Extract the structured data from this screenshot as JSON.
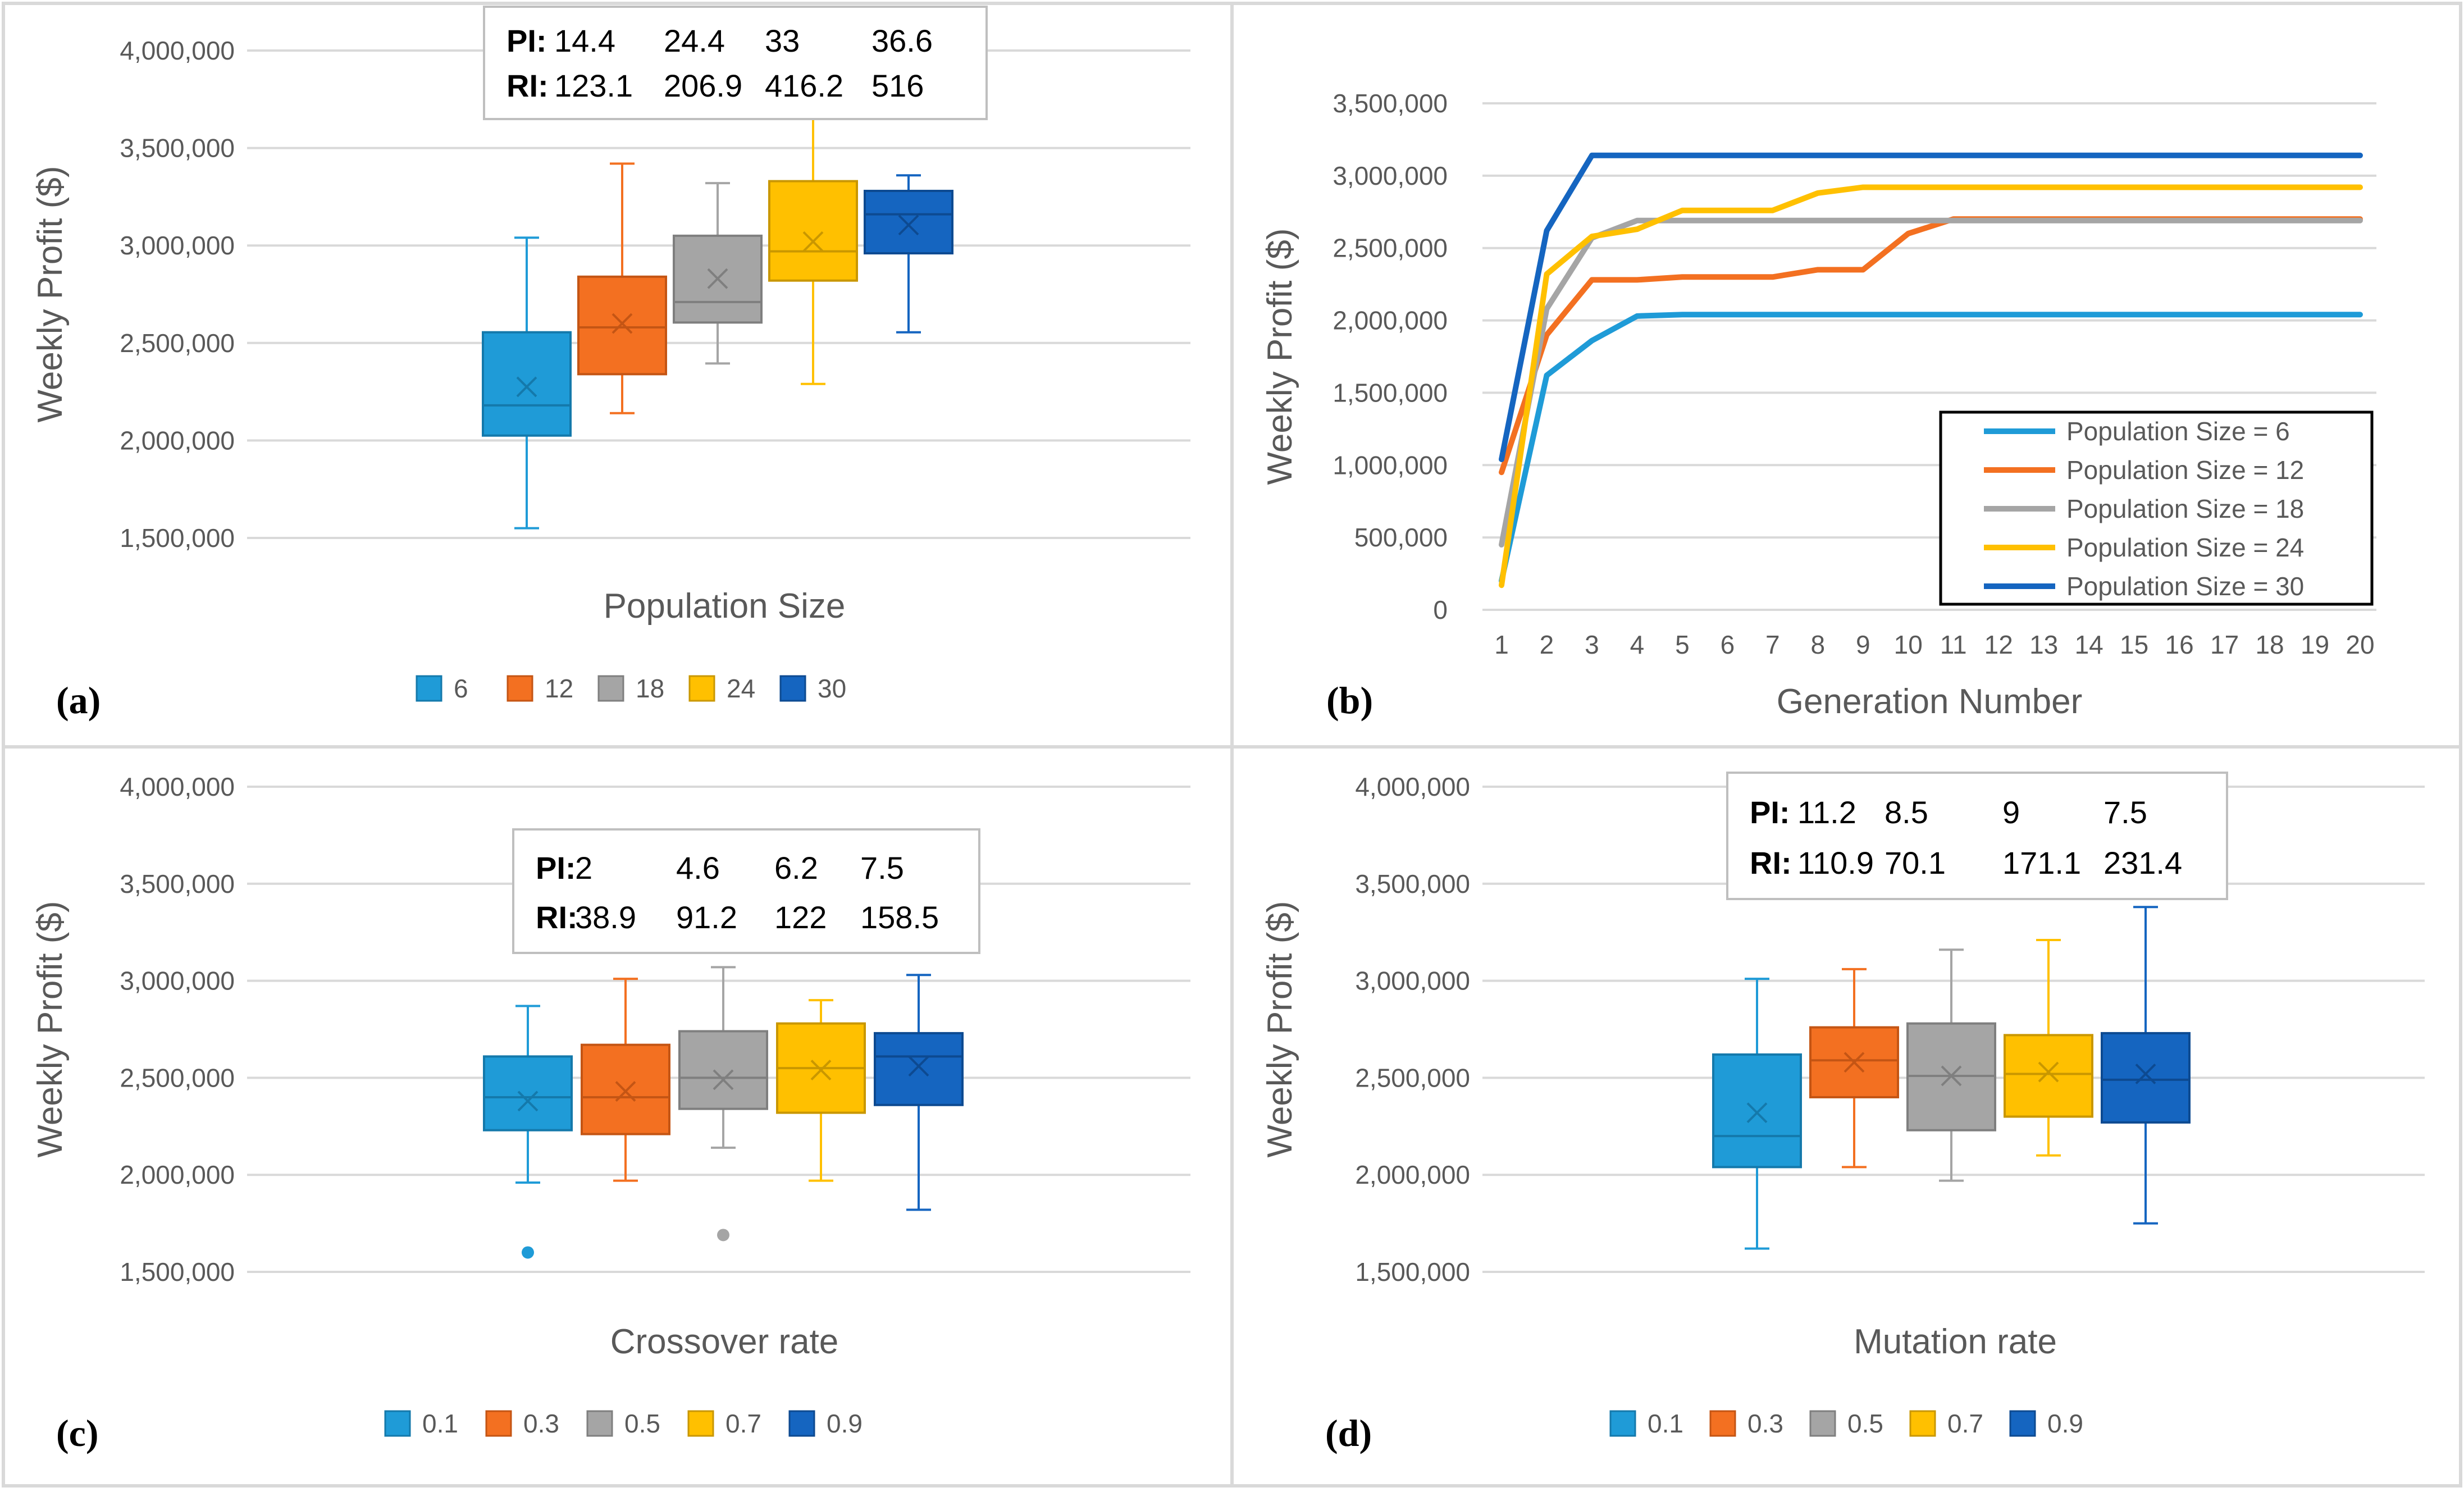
{
  "colors": {
    "c1": "#1F9BD7",
    "c2": "#F37021",
    "c3": "#A5A5A5",
    "c4": "#FFC000",
    "c5": "#1565C0",
    "grid": "#D9D9D9",
    "tick": "#595959",
    "border": "#D9D9D9"
  },
  "chart_data": [
    {
      "panel": "(a)",
      "type": "box",
      "xlabel": "Population Size",
      "ylabel": "Weekly Profit ($)",
      "ylim": [
        1500000,
        4000000
      ],
      "yticks": [
        1500000,
        2000000,
        2500000,
        3000000,
        3500000,
        4000000
      ],
      "ytick_labels": [
        "1,500,000",
        "2,000,000",
        "2,500,000",
        "3,000,000",
        "3,500,000",
        "4,000,000"
      ],
      "legend": [
        "6",
        "12",
        "18",
        "24",
        "30"
      ],
      "boxes": [
        {
          "name": "6",
          "min": 1550000,
          "q1": 2025000,
          "median": 2180000,
          "q3": 2555000,
          "max": 3040000,
          "mean": 2275000,
          "outliers": []
        },
        {
          "name": "12",
          "min": 2140000,
          "q1": 2340000,
          "median": 2580000,
          "q3": 2840000,
          "max": 3420000,
          "mean": 2600000,
          "outliers": []
        },
        {
          "name": "18",
          "min": 2395000,
          "q1": 2605000,
          "median": 2710000,
          "q3": 3050000,
          "max": 3320000,
          "mean": 2830000,
          "outliers": []
        },
        {
          "name": "24",
          "min": 2290000,
          "q1": 2820000,
          "median": 2970000,
          "q3": 3330000,
          "max": 3690000,
          "mean": 3020000,
          "outliers": []
        },
        {
          "name": "30",
          "min": 2555000,
          "q1": 2960000,
          "median": 3160000,
          "q3": 3280000,
          "max": 3360000,
          "mean": 3105000,
          "outliers": []
        }
      ],
      "annotation": {
        "pi_label": "PI:",
        "pi_values": [
          "14.4",
          "24.4",
          "33",
          "36.6"
        ],
        "ri_label": "RI:",
        "ri_values": [
          "123.1",
          "206.9",
          "416.2",
          "516"
        ]
      }
    },
    {
      "panel": "(b)",
      "type": "line",
      "xlabel": "Generation Number",
      "ylabel": "Weekly Profit ($)",
      "x": [
        1,
        2,
        3,
        4,
        5,
        6,
        7,
        8,
        9,
        10,
        11,
        12,
        13,
        14,
        15,
        16,
        17,
        18,
        19,
        20
      ],
      "xtick_labels": [
        "1",
        "2",
        "3",
        "4",
        "5",
        "6",
        "7",
        "8",
        "9",
        "10",
        "11",
        "12",
        "13",
        "14",
        "15",
        "16",
        "17",
        "18",
        "19",
        "20"
      ],
      "ylim": [
        0,
        3500000
      ],
      "yticks": [
        0,
        500000,
        1000000,
        1500000,
        2000000,
        2500000,
        3000000,
        3500000
      ],
      "ytick_labels": [
        "0",
        "500,000",
        "1,000,000",
        "1,500,000",
        "2,000,000",
        "2,500,000",
        "3,000,000",
        "3,500,000"
      ],
      "series": [
        {
          "name": "Population Size = 6",
          "values": [
            200000,
            1620000,
            1860000,
            2030000,
            2040000,
            2040000,
            2040000,
            2040000,
            2040000,
            2040000,
            2040000,
            2040000,
            2040000,
            2040000,
            2040000,
            2040000,
            2040000,
            2040000,
            2040000,
            2040000
          ]
        },
        {
          "name": "Population Size = 12",
          "values": [
            950000,
            1900000,
            2280000,
            2280000,
            2300000,
            2300000,
            2300000,
            2350000,
            2350000,
            2600000,
            2700000,
            2700000,
            2700000,
            2700000,
            2700000,
            2700000,
            2700000,
            2700000,
            2700000,
            2700000
          ]
        },
        {
          "name": "Population Size = 18",
          "values": [
            450000,
            2080000,
            2570000,
            2690000,
            2690000,
            2690000,
            2690000,
            2690000,
            2690000,
            2690000,
            2690000,
            2690000,
            2690000,
            2690000,
            2690000,
            2690000,
            2690000,
            2690000,
            2690000,
            2690000
          ]
        },
        {
          "name": "Population Size = 24",
          "values": [
            170000,
            2320000,
            2580000,
            2630000,
            2760000,
            2760000,
            2760000,
            2880000,
            2920000,
            2920000,
            2920000,
            2920000,
            2920000,
            2920000,
            2920000,
            2920000,
            2920000,
            2920000,
            2920000,
            2920000
          ]
        },
        {
          "name": "Population Size = 30",
          "values": [
            1040000,
            2620000,
            3140000,
            3140000,
            3140000,
            3140000,
            3140000,
            3140000,
            3140000,
            3140000,
            3140000,
            3140000,
            3140000,
            3140000,
            3140000,
            3140000,
            3140000,
            3140000,
            3140000,
            3140000
          ]
        }
      ],
      "legend": [
        "Population Size = 6",
        "Population Size = 12",
        "Population Size = 18",
        "Population Size = 24",
        "Population Size = 30"
      ]
    },
    {
      "panel": "(c)",
      "type": "box",
      "xlabel": "Crossover rate",
      "ylabel": "Weekly Profit ($)",
      "ylim": [
        1500000,
        4000000
      ],
      "yticks": [
        1500000,
        2000000,
        2500000,
        3000000,
        3500000,
        4000000
      ],
      "ytick_labels": [
        "1,500,000",
        "2,000,000",
        "2,500,000",
        "3,000,000",
        "3,500,000",
        "4,000,000"
      ],
      "legend": [
        "0.1",
        "0.3",
        "0.5",
        "0.7",
        "0.9"
      ],
      "boxes": [
        {
          "name": "0.1",
          "min": 1960000,
          "q1": 2230000,
          "median": 2400000,
          "q3": 2610000,
          "max": 2870000,
          "mean": 2380000,
          "outliers": [
            1600000
          ]
        },
        {
          "name": "0.3",
          "min": 1970000,
          "q1": 2210000,
          "median": 2400000,
          "q3": 2670000,
          "max": 3010000,
          "mean": 2430000,
          "outliers": []
        },
        {
          "name": "0.5",
          "min": 2140000,
          "q1": 2340000,
          "median": 2500000,
          "q3": 2740000,
          "max": 3070000,
          "mean": 2490000,
          "outliers": [
            1690000
          ]
        },
        {
          "name": "0.7",
          "min": 1970000,
          "q1": 2320000,
          "median": 2550000,
          "q3": 2780000,
          "max": 2900000,
          "mean": 2540000,
          "outliers": []
        },
        {
          "name": "0.9",
          "min": 1820000,
          "q1": 2360000,
          "median": 2610000,
          "q3": 2730000,
          "max": 3030000,
          "mean": 2560000,
          "outliers": []
        }
      ],
      "annotation": {
        "pi_label": "PI:",
        "pi_values": [
          "2",
          "4.6",
          "6.2",
          "7.5"
        ],
        "ri_label": "RI:",
        "ri_values": [
          "38.9",
          "91.2",
          "122",
          "158.5"
        ]
      }
    },
    {
      "panel": "(d)",
      "type": "box",
      "xlabel": "Mutation rate",
      "ylabel": "Weekly Profit ($)",
      "ylim": [
        1500000,
        4000000
      ],
      "yticks": [
        1500000,
        2000000,
        2500000,
        3000000,
        3500000,
        4000000
      ],
      "ytick_labels": [
        "1,500,000",
        "2,000,000",
        "2,500,000",
        "3,000,000",
        "3,500,000",
        "4,000,000"
      ],
      "legend": [
        "0.1",
        "0.3",
        "0.5",
        "0.7",
        "0.9"
      ],
      "boxes": [
        {
          "name": "0.1",
          "min": 1620000,
          "q1": 2040000,
          "median": 2200000,
          "q3": 2620000,
          "max": 3010000,
          "mean": 2320000,
          "outliers": []
        },
        {
          "name": "0.3",
          "min": 2040000,
          "q1": 2400000,
          "median": 2590000,
          "q3": 2760000,
          "max": 3060000,
          "mean": 2580000,
          "outliers": []
        },
        {
          "name": "0.5",
          "min": 1970000,
          "q1": 2230000,
          "median": 2510000,
          "q3": 2780000,
          "max": 3160000,
          "mean": 2510000,
          "outliers": []
        },
        {
          "name": "0.7",
          "min": 2100000,
          "q1": 2300000,
          "median": 2520000,
          "q3": 2720000,
          "max": 3210000,
          "mean": 2530000,
          "outliers": []
        },
        {
          "name": "0.9",
          "min": 1750000,
          "q1": 2270000,
          "median": 2490000,
          "q3": 2730000,
          "max": 3380000,
          "mean": 2520000,
          "outliers": []
        }
      ],
      "annotation": {
        "pi_label": "PI:",
        "pi_values": [
          "11.2",
          "8.5",
          "9",
          "7.5"
        ],
        "ri_label": "RI:",
        "ri_values": [
          "110.9",
          "70.1",
          "171.1",
          "231.4"
        ]
      }
    }
  ]
}
